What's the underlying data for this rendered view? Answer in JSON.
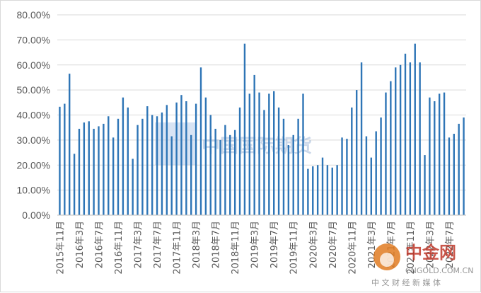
{
  "chart_data": {
    "type": "bar",
    "title": "",
    "xlabel": "",
    "ylabel": "",
    "ylim": [
      0,
      0.8
    ],
    "ytick_labels": [
      "0.00%",
      "10.00%",
      "20.00%",
      "30.00%",
      "40.00%",
      "50.00%",
      "60.00%",
      "70.00%",
      "80.00%"
    ],
    "grid": true,
    "legend": "none",
    "bar_color": "#2e75b6",
    "x_tick_labels": [
      "2015年11月",
      "2016年3月",
      "2016年7月",
      "2016年11月",
      "2017年3月",
      "2017年7月",
      "2017年11月",
      "2018年3月",
      "2018年7月",
      "2018年11月",
      "2019年3月",
      "2019年7月",
      "2019年11月",
      "2020年3月",
      "2020年7月",
      "2020年11月",
      "2021年3月",
      "2021年7月",
      "2021年11月",
      "2022年3月",
      "2022年7月"
    ],
    "categories": [
      "2015-11",
      "2015-12",
      "2016-01",
      "2016-02",
      "2016-03",
      "2016-04",
      "2016-05",
      "2016-06",
      "2016-07",
      "2016-08",
      "2016-09",
      "2016-10",
      "2016-11",
      "2016-12",
      "2017-01",
      "2017-02",
      "2017-03",
      "2017-04",
      "2017-05",
      "2017-06",
      "2017-07",
      "2017-08",
      "2017-09",
      "2017-10",
      "2017-11",
      "2017-12",
      "2018-01",
      "2018-02",
      "2018-03",
      "2018-04",
      "2018-05",
      "2018-06",
      "2018-07",
      "2018-08",
      "2018-09",
      "2018-10",
      "2018-11",
      "2018-12",
      "2019-01",
      "2019-02",
      "2019-03",
      "2019-04",
      "2019-05",
      "2019-06",
      "2019-07",
      "2019-08",
      "2019-09",
      "2019-10",
      "2019-11",
      "2019-12",
      "2020-01",
      "2020-02",
      "2020-03",
      "2020-04",
      "2020-05",
      "2020-06",
      "2020-07",
      "2020-08",
      "2020-09",
      "2020-10",
      "2020-11",
      "2020-12",
      "2021-01",
      "2021-02",
      "2021-03",
      "2021-04",
      "2021-05",
      "2021-06",
      "2021-07",
      "2021-08",
      "2021-09",
      "2021-10",
      "2021-11",
      "2021-12",
      "2022-01",
      "2022-02",
      "2022-03",
      "2022-04",
      "2022-05",
      "2022-06",
      "2022-07",
      "2022-08",
      "2022-09",
      "2022-10"
    ],
    "values": [
      0.433,
      0.445,
      0.565,
      0.245,
      0.345,
      0.37,
      0.375,
      0.345,
      0.355,
      0.365,
      0.395,
      0.31,
      0.385,
      0.47,
      0.43,
      0.225,
      0.36,
      0.385,
      0.435,
      0.4,
      0.395,
      0.41,
      0.44,
      0.315,
      0.45,
      0.48,
      0.455,
      0.32,
      0.445,
      0.59,
      0.47,
      0.4,
      0.345,
      0.3,
      0.36,
      0.32,
      0.34,
      0.43,
      0.685,
      0.485,
      0.56,
      0.49,
      0.42,
      0.485,
      0.495,
      0.43,
      0.385,
      0.28,
      0.32,
      0.385,
      0.485,
      0.185,
      0.195,
      0.2,
      0.23,
      0.2,
      0.19,
      0.2,
      0.31,
      0.305,
      0.43,
      0.5,
      0.61,
      0.315,
      0.23,
      0.335,
      0.39,
      0.49,
      0.535,
      0.59,
      0.6,
      0.645,
      0.61,
      0.685,
      0.61,
      0.24,
      0.47,
      0.455,
      0.485,
      0.49,
      0.31,
      0.325,
      0.365,
      0.39
    ]
  },
  "watermark": {
    "text": "中国国际期货"
  },
  "logo": {
    "name": "中金网",
    "url_text": "CNGOLD.COM.CN",
    "slogan": "中 文 财 经 新 媒 体"
  }
}
